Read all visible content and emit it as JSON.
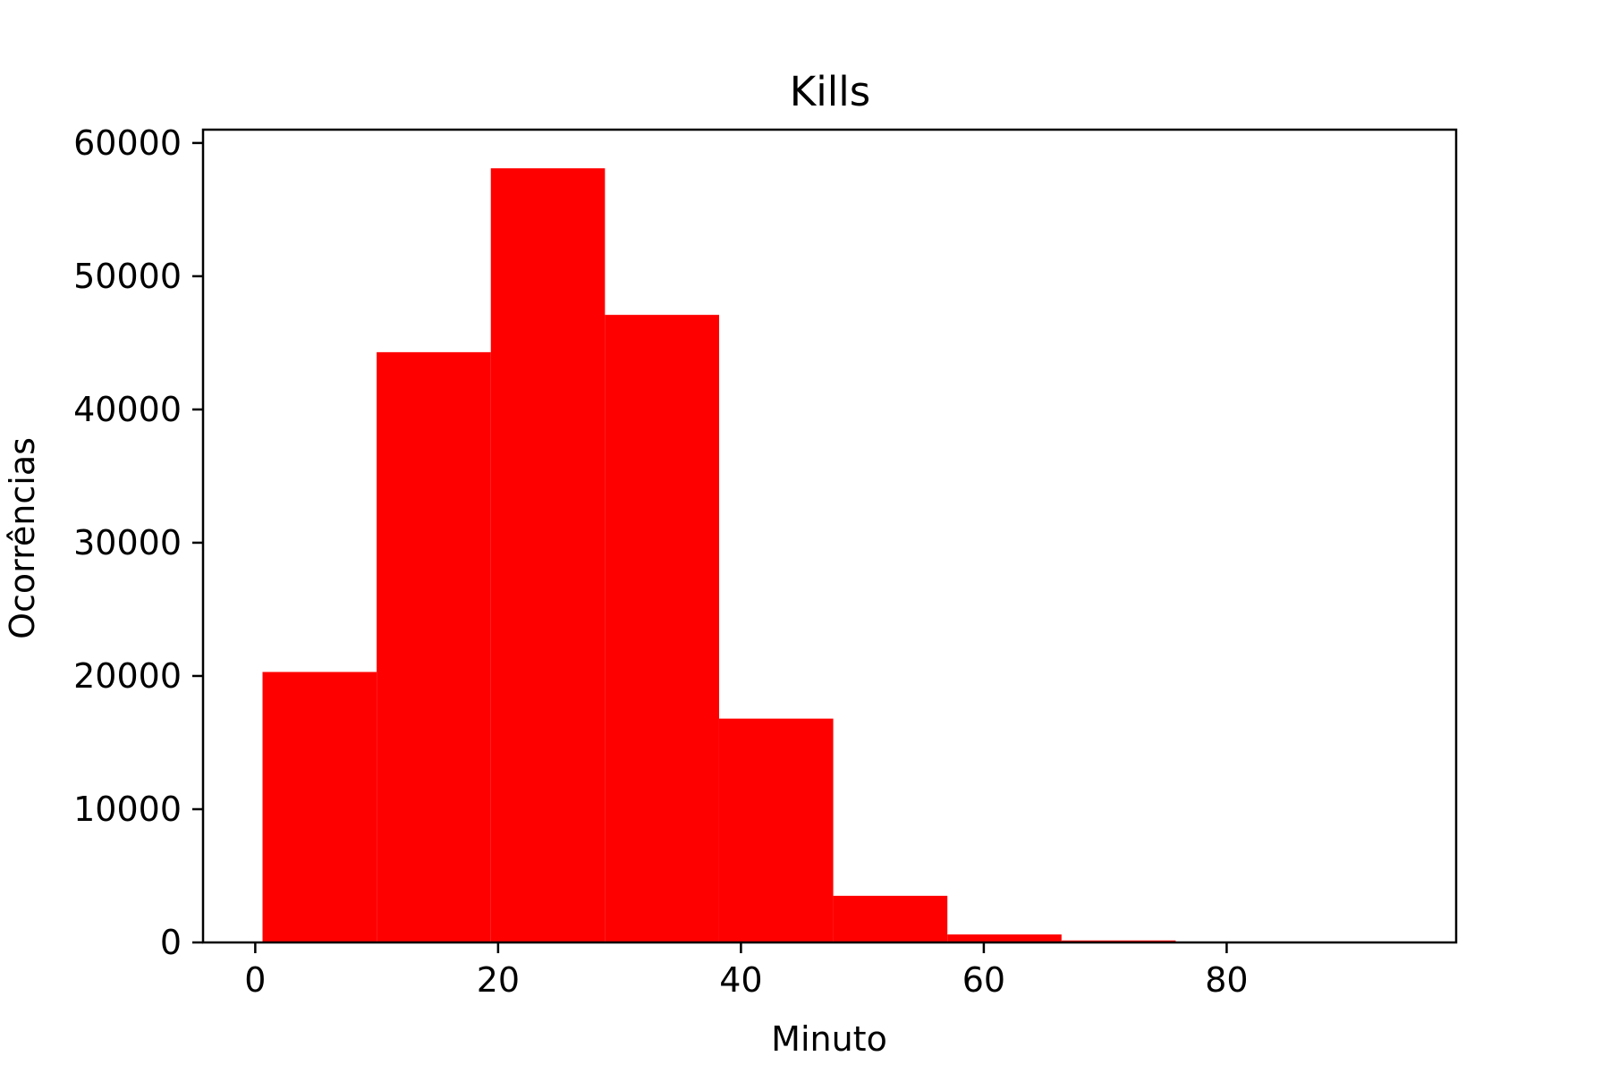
{
  "chart_data": {
    "type": "bar",
    "title": "Kills",
    "xlabel": "Minuto",
    "ylabel": "Ocorrências",
    "bar_color": "#ff0000",
    "xlim": [
      -4.3,
      98.9
    ],
    "ylim": [
      0,
      61000
    ],
    "xticks": [
      0,
      20,
      40,
      60,
      80
    ],
    "yticks": [
      0,
      10000,
      20000,
      30000,
      40000,
      50000,
      60000
    ],
    "bins": [
      {
        "x0": 0.6,
        "x1": 10.0,
        "value": 20300
      },
      {
        "x0": 10.0,
        "x1": 19.4,
        "value": 44300
      },
      {
        "x0": 19.4,
        "x1": 28.8,
        "value": 58100
      },
      {
        "x0": 28.8,
        "x1": 38.2,
        "value": 47100
      },
      {
        "x0": 38.2,
        "x1": 47.6,
        "value": 16800
      },
      {
        "x0": 47.6,
        "x1": 57.0,
        "value": 3500
      },
      {
        "x0": 57.0,
        "x1": 66.4,
        "value": 600
      },
      {
        "x0": 66.4,
        "x1": 75.8,
        "value": 150
      },
      {
        "x0": 75.8,
        "x1": 85.2,
        "value": 20
      },
      {
        "x0": 85.2,
        "x1": 94.6,
        "value": 3
      }
    ],
    "grid": false,
    "legend": false
  }
}
